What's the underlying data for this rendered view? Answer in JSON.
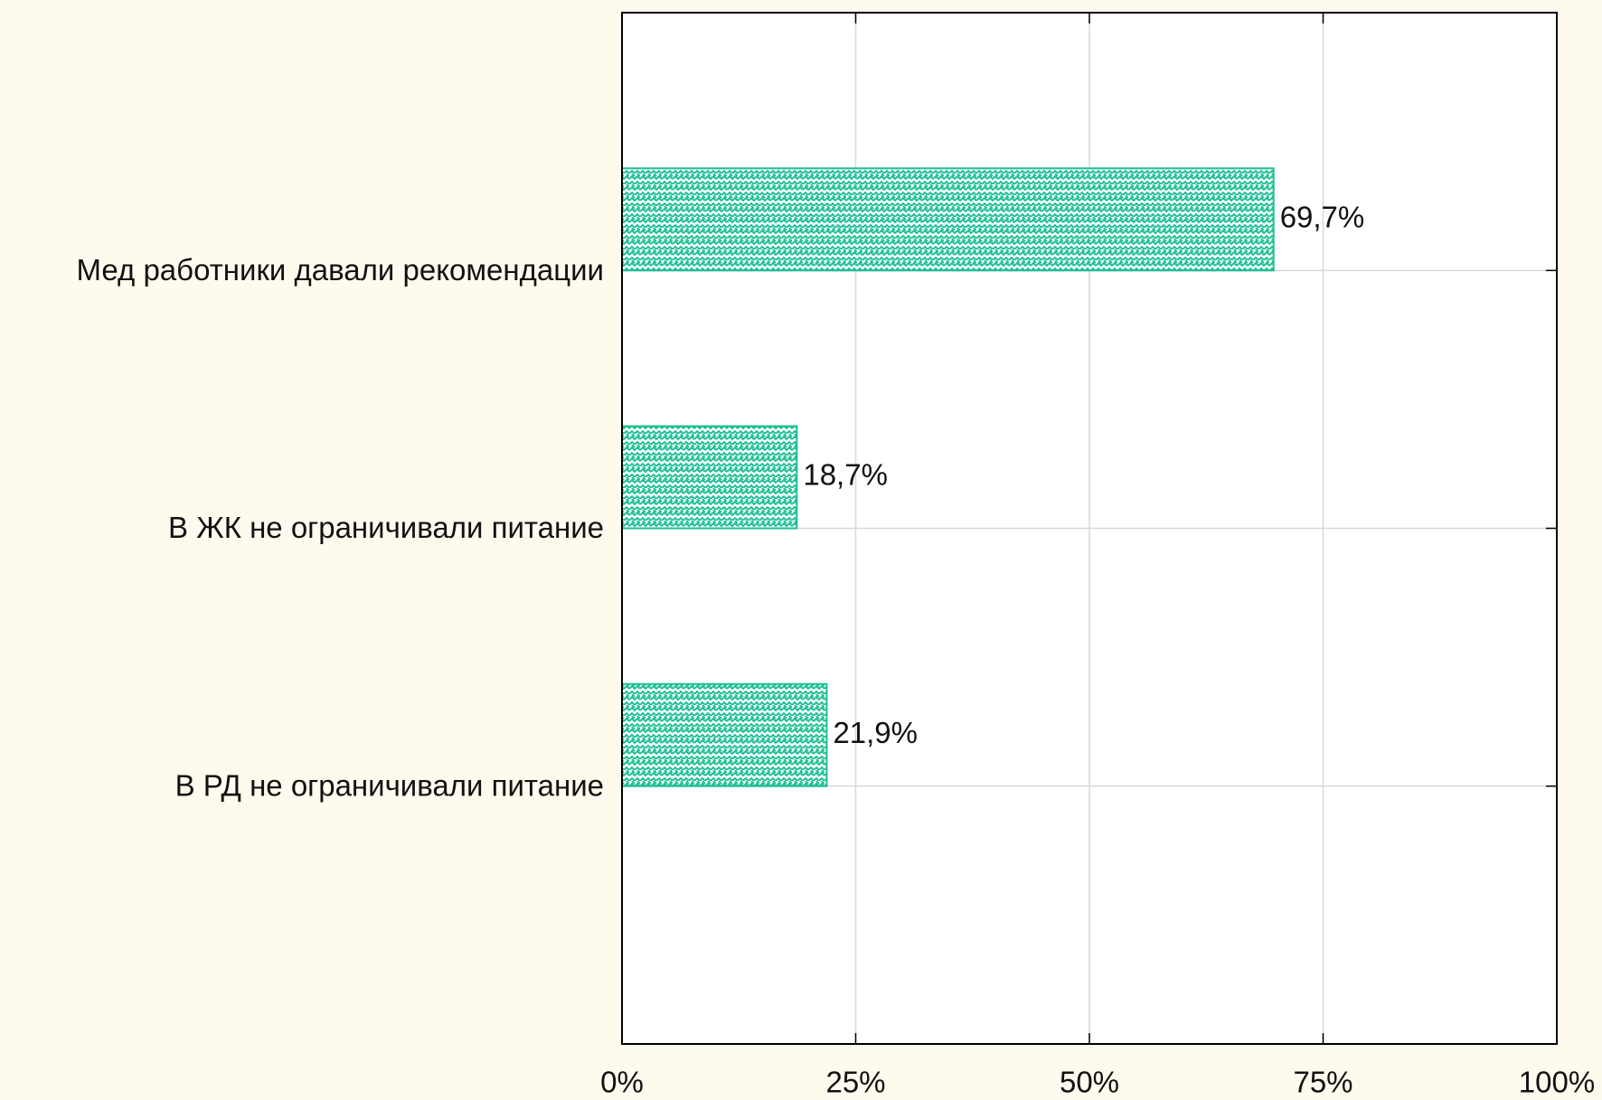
{
  "chart_data": {
    "type": "bar",
    "orientation": "horizontal",
    "categories": [
      "Мед работники давали рекомендации",
      "В ЖК не ограничивали питание",
      "В РД не ограничивали питание"
    ],
    "values": [
      69.7,
      18.7,
      21.9
    ],
    "value_labels": [
      "69,7%",
      "18,7%",
      "21,9%"
    ],
    "color": "#1fbf96",
    "xlim": [
      0,
      100
    ],
    "xticks": [
      {
        "value": 0,
        "label": "0%"
      },
      {
        "value": 25,
        "label": "25%"
      },
      {
        "value": 50,
        "label": "50%"
      },
      {
        "value": 75,
        "label": "75%"
      },
      {
        "value": 100,
        "label": "100%"
      }
    ],
    "grid": true
  }
}
